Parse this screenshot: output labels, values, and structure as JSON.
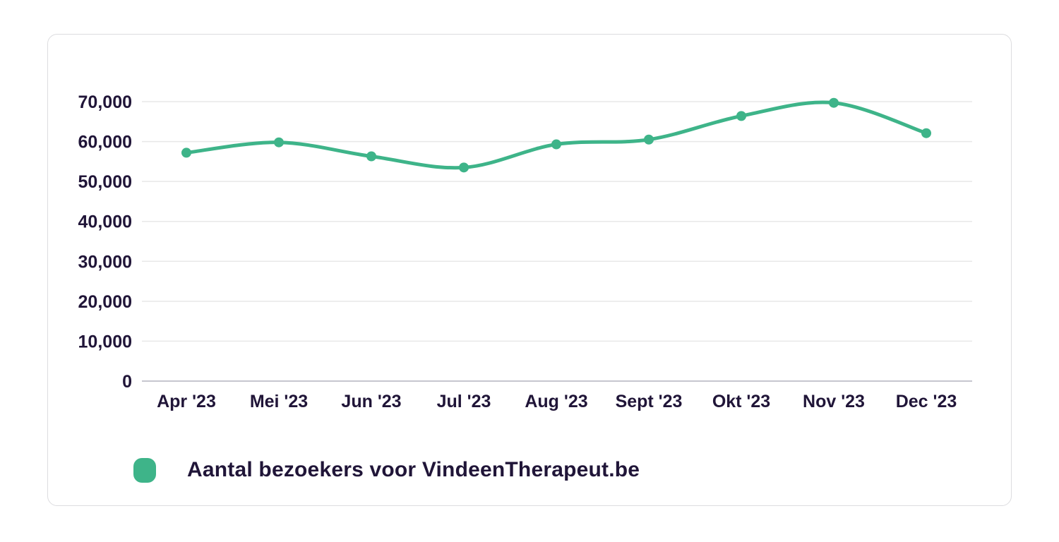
{
  "chart_data": {
    "type": "line",
    "title": "",
    "categories": [
      "Apr '23",
      "Mei '23",
      "Jun '23",
      "Jul '23",
      "Aug '23",
      "Sept '23",
      "Okt '23",
      "Nov '23",
      "Dec '23"
    ],
    "series": [
      {
        "name": "Aantal bezoekers voor VindeenTherapeut.be",
        "values": [
          57200,
          59800,
          56300,
          53500,
          59300,
          60500,
          66400,
          69700,
          62100
        ],
        "color": "#3eb489",
        "line_style": "smooth",
        "marker": "dot"
      }
    ],
    "xlabel": "",
    "ylabel": "",
    "ylim": [
      0,
      70000
    ],
    "ytick_interval": 10000,
    "ytick_labels": [
      "0",
      "10,000",
      "20,000",
      "30,000",
      "40,000",
      "50,000",
      "60,000",
      "70,000"
    ],
    "grid": "horizontal",
    "legend_position": "bottom-left"
  },
  "legend": {
    "label": "Aantal bezoekers voor VindeenTherapeut.be",
    "marker_color": "#3eb489"
  },
  "colors": {
    "accent_green": "#3eb489",
    "text_dark": "#201538",
    "gridline": "#e8e8e8",
    "axis_line": "#c6c6cf",
    "card_border": "#dcdcdf",
    "background": "#ffffff"
  }
}
